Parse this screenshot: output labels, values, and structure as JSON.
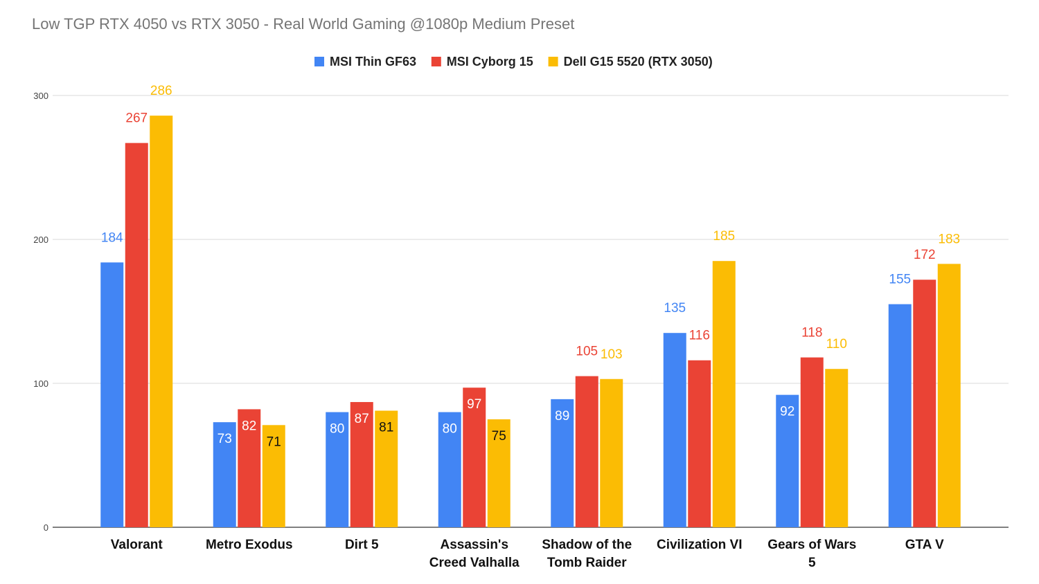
{
  "chart_data": {
    "type": "bar",
    "title": "Low TGP RTX 4050 vs RTX 3050 - Real World Gaming @1080p Medium Preset",
    "xlabel": "",
    "ylabel": "",
    "ylim": [
      0,
      300
    ],
    "yticks": [
      0,
      100,
      200,
      300
    ],
    "grid": true,
    "legend_position": "top-center",
    "categories": [
      [
        "Valorant"
      ],
      [
        "Metro Exodus"
      ],
      [
        "Dirt 5"
      ],
      [
        "Assassin's",
        "Creed Valhalla"
      ],
      [
        "Shadow of the",
        "Tomb Raider"
      ],
      [
        "Civilization VI"
      ],
      [
        "Gears of Wars",
        "5"
      ],
      [
        "GTA V"
      ]
    ],
    "series": [
      {
        "name": "MSI Thin GF63",
        "color": "#4285F4",
        "values": [
          184,
          73,
          80,
          80,
          89,
          135,
          92,
          155
        ],
        "label_inside": [
          false,
          true,
          true,
          true,
          true,
          false,
          true,
          false
        ]
      },
      {
        "name": "MSI Cyborg 15",
        "color": "#EA4335",
        "values": [
          267,
          82,
          87,
          97,
          105,
          116,
          118,
          172
        ],
        "label_inside": [
          false,
          true,
          true,
          true,
          false,
          false,
          false,
          false
        ]
      },
      {
        "name": "Dell G15 5520 (RTX 3050)",
        "color": "#FBBC04",
        "values": [
          286,
          71,
          81,
          75,
          103,
          185,
          110,
          183
        ],
        "label_inside": [
          false,
          true,
          true,
          true,
          false,
          false,
          false,
          false
        ]
      }
    ]
  }
}
